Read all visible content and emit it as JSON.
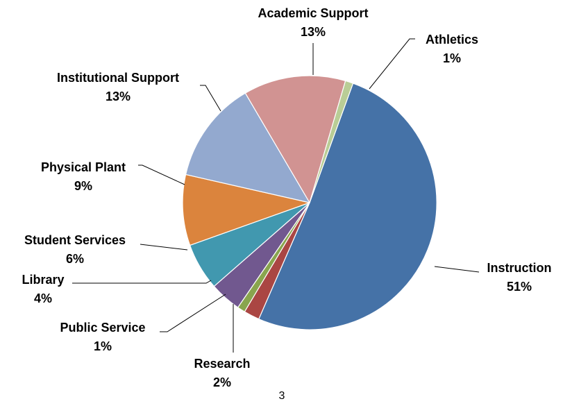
{
  "page_number": "3",
  "chart_data": {
    "type": "pie",
    "start_angle_deg": 20,
    "direction": "clockwise",
    "slices": [
      {
        "name": "Instruction",
        "value": 51,
        "label": "51%",
        "color": "#4572A7"
      },
      {
        "name": "Research",
        "value": 2,
        "label": "2%",
        "color": "#AA4643"
      },
      {
        "name": "Public Service",
        "value": 1,
        "label": "1%",
        "color": "#89A54E"
      },
      {
        "name": "Library",
        "value": 4,
        "label": "4%",
        "color": "#71588F"
      },
      {
        "name": "Student Services",
        "value": 6,
        "label": "6%",
        "color": "#4198AF"
      },
      {
        "name": "Physical Plant",
        "value": 9,
        "label": "9%",
        "color": "#DB843D"
      },
      {
        "name": "Institutional Support",
        "value": 13,
        "label": "13%",
        "color": "#93A9CF"
      },
      {
        "name": "Academic Support",
        "value": 13,
        "label": "13%",
        "color": "#D19392"
      },
      {
        "name": "Athletics",
        "value": 1,
        "label": "1%",
        "color": "#B9CD96"
      }
    ]
  }
}
